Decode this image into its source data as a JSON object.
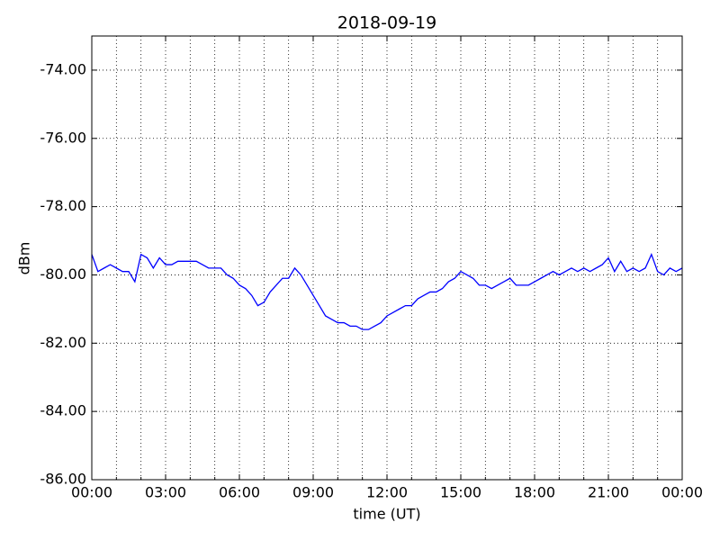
{
  "chart_data": {
    "type": "line",
    "title": "2018-09-19",
    "xlabel": "time (UT)",
    "ylabel": "dBm",
    "x": [
      0,
      0.25,
      0.5,
      0.75,
      1,
      1.25,
      1.5,
      1.75,
      2,
      2.25,
      2.5,
      2.75,
      3,
      3.25,
      3.5,
      3.75,
      4,
      4.25,
      4.5,
      4.75,
      5,
      5.25,
      5.5,
      5.75,
      6,
      6.25,
      6.5,
      6.75,
      7,
      7.25,
      7.5,
      7.75,
      8,
      8.25,
      8.5,
      8.75,
      9,
      9.25,
      9.5,
      9.75,
      10,
      10.25,
      10.5,
      10.75,
      11,
      11.25,
      11.5,
      11.75,
      12,
      12.25,
      12.5,
      12.75,
      13,
      13.25,
      13.5,
      13.75,
      14,
      14.25,
      14.5,
      14.75,
      15,
      15.25,
      15.5,
      15.75,
      16,
      16.25,
      16.5,
      16.75,
      17,
      17.25,
      17.5,
      17.75,
      18,
      18.25,
      18.5,
      18.75,
      19,
      19.25,
      19.5,
      19.75,
      20,
      20.25,
      20.5,
      20.75,
      21,
      21.25,
      21.5,
      21.75,
      22,
      22.25,
      22.5,
      22.75,
      23,
      23.25,
      23.5,
      23.75,
      24
    ],
    "series": [
      {
        "name": "dBm",
        "color": "#0000ff",
        "values": [
          -79.4,
          -79.9,
          -79.8,
          -79.7,
          -79.8,
          -79.9,
          -79.9,
          -80.2,
          -79.4,
          -79.5,
          -79.8,
          -79.5,
          -79.7,
          -79.7,
          -79.6,
          -79.6,
          -79.6,
          -79.6,
          -79.7,
          -79.8,
          -79.8,
          -79.8,
          -80.0,
          -80.1,
          -80.3,
          -80.4,
          -80.6,
          -80.9,
          -80.8,
          -80.5,
          -80.3,
          -80.1,
          -80.1,
          -79.8,
          -80.0,
          -80.3,
          -80.6,
          -80.9,
          -81.2,
          -81.3,
          -81.4,
          -81.4,
          -81.5,
          -81.5,
          -81.6,
          -81.6,
          -81.5,
          -81.4,
          -81.2,
          -81.1,
          -81.0,
          -80.9,
          -80.9,
          -80.7,
          -80.6,
          -80.5,
          -80.5,
          -80.4,
          -80.2,
          -80.1,
          -79.9,
          -80.0,
          -80.1,
          -80.3,
          -80.3,
          -80.4,
          -80.3,
          -80.2,
          -80.1,
          -80.3,
          -80.3,
          -80.3,
          -80.2,
          -80.1,
          -80.0,
          -79.9,
          -80.0,
          -79.9,
          -79.8,
          -79.9,
          -79.8,
          -79.9,
          -79.8,
          -79.7,
          -79.5,
          -79.9,
          -79.6,
          -79.9,
          -79.8,
          -79.9,
          -79.8,
          -79.4,
          -79.9,
          -80.0,
          -79.8,
          -79.9,
          -79.8
        ]
      }
    ],
    "xlim": [
      0,
      24
    ],
    "xticks": [
      {
        "value": 0,
        "label": "00:00"
      },
      {
        "value": 3,
        "label": "03:00"
      },
      {
        "value": 6,
        "label": "06:00"
      },
      {
        "value": 9,
        "label": "09:00"
      },
      {
        "value": 12,
        "label": "12:00"
      },
      {
        "value": 15,
        "label": "15:00"
      },
      {
        "value": 18,
        "label": "18:00"
      },
      {
        "value": 21,
        "label": "21:00"
      },
      {
        "value": 24,
        "label": "00:00"
      }
    ],
    "xminorticks": [
      1,
      2,
      4,
      5,
      7,
      8,
      10,
      11,
      13,
      14,
      16,
      17,
      19,
      20,
      22,
      23
    ],
    "ylim": [
      -86,
      -73
    ],
    "yticks": [
      {
        "value": -86,
        "label": "-86.00"
      },
      {
        "value": -84,
        "label": "-84.00"
      },
      {
        "value": -82,
        "label": "-82.00"
      },
      {
        "value": -80,
        "label": "-80.00"
      },
      {
        "value": -78,
        "label": "-78.00"
      },
      {
        "value": -76,
        "label": "-76.00"
      },
      {
        "value": -74,
        "label": "-74.00"
      }
    ],
    "grid": true
  }
}
